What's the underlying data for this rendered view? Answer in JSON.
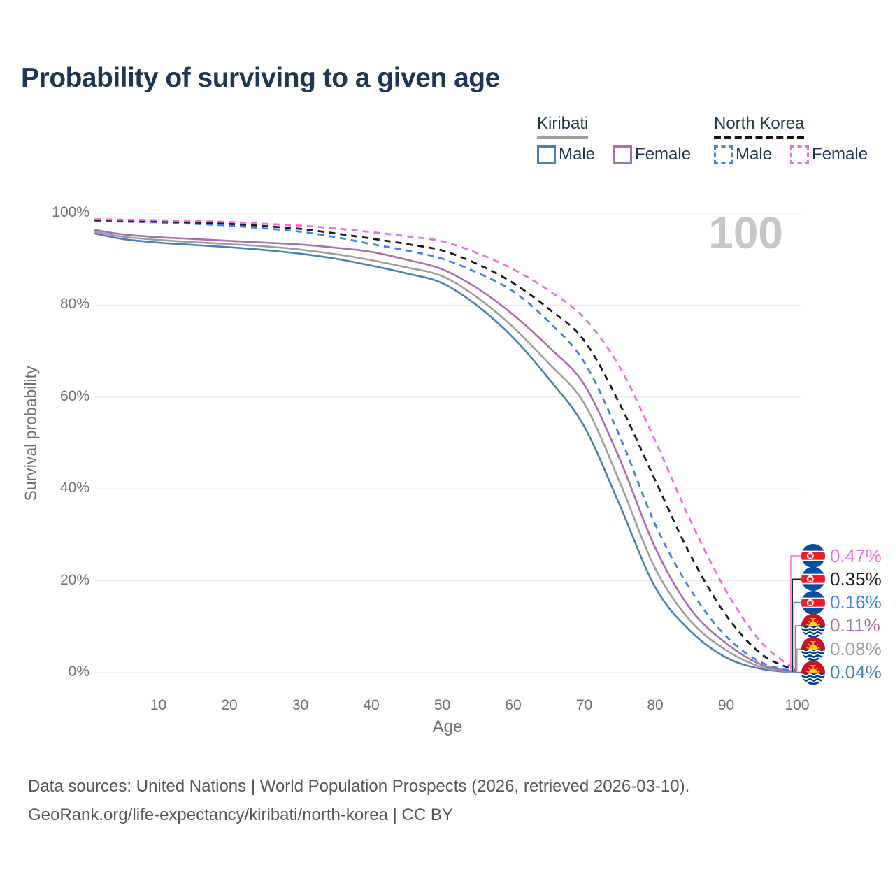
{
  "title": "Probability of surviving to a given age",
  "watermark": "100",
  "legend": {
    "groups": [
      {
        "name": "Kiribati",
        "underline": "solid",
        "underline_color": "#9e9e9e",
        "items": [
          {
            "label": "Male",
            "color": "#4a7eb9",
            "dashed": false
          },
          {
            "label": "Female",
            "color": "#a86fad",
            "dashed": false
          }
        ]
      },
      {
        "name": "North Korea",
        "underline": "dashed",
        "underline_color": "#141414",
        "items": [
          {
            "label": "Male",
            "color": "#3d82f0",
            "dashed": true
          },
          {
            "label": "Female",
            "color": "#fb68de",
            "dashed": true
          }
        ]
      }
    ]
  },
  "chart_data": {
    "type": "line",
    "title": "Probability of surviving to a given age",
    "xlabel": "Age",
    "ylabel": "Survival probability",
    "xlim": [
      0,
      100
    ],
    "ylim": [
      0,
      100
    ],
    "grid": true,
    "legend_position": "top-right",
    "y_ticks": [
      {
        "value": 0,
        "label": "0%"
      },
      {
        "value": 20,
        "label": "20%"
      },
      {
        "value": 40,
        "label": "40%"
      },
      {
        "value": 60,
        "label": "60%"
      },
      {
        "value": 80,
        "label": "80%"
      },
      {
        "value": 100,
        "label": "100%"
      }
    ],
    "x_ticks": [
      10,
      20,
      30,
      40,
      50,
      60,
      70,
      80,
      90,
      100
    ],
    "x": [
      1,
      5,
      10,
      15,
      20,
      25,
      30,
      35,
      40,
      45,
      50,
      55,
      60,
      65,
      70,
      75,
      80,
      85,
      90,
      95,
      100
    ],
    "series": [
      {
        "name": "Kiribati Male",
        "country": "Kiribati",
        "sex": "Male",
        "flag": "kiribati",
        "color": "#4a7eb9",
        "dashed": false,
        "end_label": "0.04%",
        "values": [
          95.6,
          94.4,
          93.6,
          93.1,
          92.6,
          92.0,
          91.2,
          90.1,
          88.6,
          86.9,
          84.8,
          79.8,
          72.9,
          64.0,
          53.6,
          36.5,
          18.6,
          9.0,
          3.3,
          0.8,
          0.04
        ]
      },
      {
        "name": "Kiribati Total",
        "country": "Kiribati",
        "sex": "Total",
        "flag": "kiribati",
        "color": "#9e9e9e",
        "dashed": false,
        "end_label": "0.08%",
        "values": [
          96.0,
          94.9,
          94.2,
          93.7,
          93.3,
          92.8,
          92.1,
          91.1,
          89.8,
          88.2,
          86.3,
          81.6,
          75.2,
          67.3,
          58.6,
          41.5,
          22.7,
          11.2,
          4.9,
          1.2,
          0.08
        ]
      },
      {
        "name": "Kiribati Female",
        "country": "Kiribati",
        "sex": "Female",
        "flag": "kiribati",
        "color": "#a86fad",
        "dashed": false,
        "end_label": "0.11%",
        "values": [
          96.4,
          95.4,
          94.8,
          94.4,
          94.0,
          93.6,
          93.2,
          92.5,
          91.6,
          89.9,
          87.8,
          83.6,
          77.9,
          70.9,
          62.7,
          46.5,
          27.2,
          13.8,
          6.4,
          1.7,
          0.11
        ]
      },
      {
        "name": "North Korea Male",
        "country": "North Korea",
        "sex": "Male",
        "flag": "north-korea",
        "color": "#3d82f0",
        "dashed": true,
        "end_label": "0.16%",
        "values": [
          98.4,
          98.2,
          98.0,
          97.7,
          97.3,
          96.7,
          96.0,
          94.8,
          93.3,
          91.9,
          90.1,
          87.0,
          83.0,
          76.4,
          67.6,
          51.5,
          32.3,
          18.0,
          7.9,
          2.2,
          0.16
        ]
      },
      {
        "name": "North Korea Total",
        "country": "North Korea",
        "sex": "Total",
        "flag": "north-korea",
        "color": "#1a1a1a",
        "dashed": true,
        "end_label": "0.35%",
        "values": [
          98.5,
          98.4,
          98.2,
          98.0,
          97.7,
          97.2,
          96.6,
          95.6,
          94.5,
          93.3,
          91.9,
          88.9,
          84.8,
          79.2,
          72.3,
          58.5,
          41.9,
          25.5,
          12.5,
          4.0,
          0.35
        ]
      },
      {
        "name": "North Korea Female",
        "country": "North Korea",
        "sex": "Female",
        "flag": "north-korea",
        "color": "#fb68de",
        "dashed": true,
        "end_label": "0.47%",
        "values": [
          98.7,
          98.6,
          98.5,
          98.3,
          98.1,
          97.7,
          97.3,
          96.7,
          95.9,
          95.0,
          93.9,
          91.3,
          87.8,
          83.2,
          77.2,
          66.5,
          50.5,
          33.0,
          17.8,
          6.5,
          0.47
        ]
      }
    ]
  },
  "footer": {
    "line1": "Data sources: United Nations | World Population Prospects (2026, retrieved 2026-03-10).",
    "line2": "GeoRank.org/life-expectancy/kiribati/north-korea | CC BY"
  }
}
